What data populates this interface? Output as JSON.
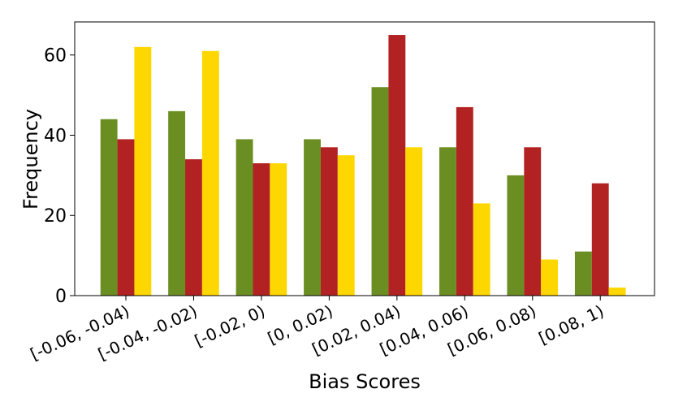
{
  "chart_data": {
    "type": "bar",
    "x_label": "Bias Scores",
    "y_label": "Frequency",
    "categories": [
      "[-0.06, -0.04)",
      "[-0.04, -0.02)",
      "[-0.02, 0)",
      "[0, 0.02)",
      "[0.02, 0.04)",
      "[0.04, 0.06)",
      "[0.06, 0.08)",
      "[0.08, 1)"
    ],
    "series": [
      {
        "color": "#6b8e23",
        "values": [
          44,
          46,
          39,
          39,
          52,
          37,
          30,
          11
        ]
      },
      {
        "color": "#b22222",
        "values": [
          39,
          34,
          33,
          37,
          65,
          47,
          37,
          28
        ]
      },
      {
        "color": "#ffd700",
        "values": [
          62,
          61,
          33,
          35,
          37,
          23,
          9,
          2
        ]
      }
    ],
    "ylim": [
      0,
      68.25
    ],
    "yticks": [
      0,
      20,
      40,
      60
    ],
    "grid": false
  }
}
